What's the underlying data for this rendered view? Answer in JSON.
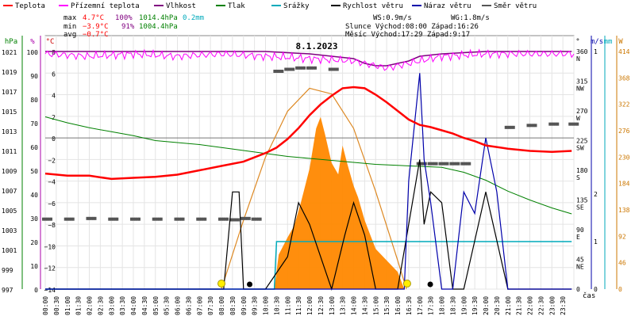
{
  "chart_data": {
    "type": "line",
    "title": "8.1.2023",
    "legend": [
      {
        "label": "Teplota",
        "color": "#ff0000"
      },
      {
        "label": "Přízemní teplota",
        "color": "#ff00ff"
      },
      {
        "label": "Vlhkost",
        "color": "#800080"
      },
      {
        "label": "Tlak",
        "color": "#008000"
      },
      {
        "label": "Srážky",
        "color": "#00aabb"
      },
      {
        "label": "Rychlost větru",
        "color": "#000000"
      },
      {
        "label": "Náraz větru",
        "color": "#0000aa"
      },
      {
        "label": "Směr větru",
        "color": "#555555"
      }
    ],
    "stats": {
      "max_label": "max",
      "max_temp": "4.7°C",
      "max_hum": "100%",
      "max_press": "1014.4hPa",
      "max_rain": "0.2mm",
      "min_label": "min",
      "min_temp": "−3.9°C",
      "min_hum": "91%",
      "min_press": "1004.4hPa",
      "avg_label": "avg",
      "avg_temp": "−0.7°C",
      "ws": "WS:0.9m/s",
      "wg": "WG:1.8m/s",
      "sun": "Slunce Východ:08:00  Západ:16:26",
      "moon": "Měsíc  Východ:17:29  Západ:9:17"
    },
    "axis_units": {
      "hpa": "hPa",
      "percent": "%",
      "celsius": "°C",
      "deg": "°",
      "ms": "m/s",
      "mm": "mm",
      "wm2": "W",
      "time": "čas"
    },
    "hpa_ticks": [
      "1021",
      "1019",
      "1017",
      "1015",
      "1013",
      "1011",
      "1009",
      "1007",
      "1005",
      "1003",
      "1001",
      "999",
      "997"
    ],
    "pct_ticks": [
      "100",
      "90",
      "80",
      "70",
      "60",
      "50",
      "40",
      "30",
      "20",
      "10",
      "0"
    ],
    "temp_ticks": [
      "8",
      "6",
      "4",
      "2",
      "0",
      "−2",
      "−4",
      "−6",
      "−8",
      "−10",
      "−12",
      "−14"
    ],
    "dir_ticks": [
      "360\nN",
      "315\nNW",
      "270\nW",
      "225\nSW",
      "180\nS",
      "135\nSE",
      "90\nE",
      "45\nNE",
      "0"
    ],
    "ms_ticks": [
      "1",
      "2",
      "1",
      "0"
    ],
    "rad_ticks": [
      "414",
      "368",
      "322",
      "276",
      "230",
      "184",
      "138",
      "92",
      "46",
      "0"
    ],
    "time_labels": [
      "00:00",
      "00:30",
      "01:00",
      "01:30",
      "02:00",
      "02:30",
      "03:00",
      "03:30",
      "04:00",
      "04:30",
      "05:00",
      "05:30",
      "06:00",
      "06:30",
      "07:00",
      "07:30",
      "08:00",
      "08:30",
      "09:00",
      "09:30",
      "10:00",
      "10:30",
      "11:00",
      "11:30",
      "12:00",
      "12:30",
      "13:00",
      "13:30",
      "14:00",
      "14:30",
      "15:00",
      "15:30",
      "16:00",
      "16:30",
      "17:00",
      "17:30",
      "18:00",
      "18:30",
      "19:00",
      "19:30",
      "20:00",
      "20:30",
      "21:00",
      "21:30",
      "22:00",
      "22:30",
      "23:00",
      "23:30"
    ],
    "series": {
      "temperature": {
        "x": [
          0,
          1,
          2,
          3,
          4,
          5,
          6,
          7,
          8,
          9,
          10,
          10.5,
          11,
          11.5,
          12,
          12.5,
          13,
          13.5,
          14,
          14.5,
          15,
          15.5,
          16,
          16.5,
          17,
          17.5,
          18,
          18.5,
          19,
          19.5,
          20,
          21,
          22,
          23,
          23.9
        ],
        "y": [
          -3.3,
          -3.5,
          -3.5,
          -3.8,
          -3.7,
          -3.6,
          -3.4,
          -3.0,
          -2.6,
          -2.2,
          -1.4,
          -0.9,
          -0.1,
          0.9,
          2.1,
          3.1,
          3.9,
          4.6,
          4.7,
          4.6,
          4.0,
          3.3,
          2.5,
          1.7,
          1.2,
          1.0,
          0.7,
          0.4,
          0.0,
          -0.3,
          -0.7,
          -1.0,
          -1.2,
          -1.3,
          -1.2
        ]
      },
      "pressure": {
        "x": [
          0,
          1,
          2,
          3,
          4,
          5,
          6,
          7,
          8,
          9,
          10,
          11,
          12,
          13,
          14,
          15,
          16,
          17,
          18,
          19,
          20,
          21,
          22,
          23,
          23.9
        ],
        "y": [
          1014.4,
          1013.8,
          1013.3,
          1012.9,
          1012.5,
          1012.0,
          1011.8,
          1011.6,
          1011.3,
          1011.0,
          1010.7,
          1010.4,
          1010.2,
          1010.0,
          1009.8,
          1009.6,
          1009.5,
          1009.4,
          1009.3,
          1008.8,
          1008.0,
          1006.9,
          1006.0,
          1005.2,
          1004.6
        ]
      },
      "ground_temp_humidity": {
        "x": [
          0,
          2,
          4,
          6,
          8,
          10,
          12,
          14,
          15,
          15.5,
          16,
          16.5,
          17,
          18,
          20,
          22,
          23.9
        ],
        "y": [
          100,
          99,
          100,
          99,
          100,
          99,
          98,
          97,
          95,
          94,
          95,
          96,
          97,
          99,
          100,
          100,
          100
        ]
      },
      "humidity": {
        "x": [
          0,
          2,
          4,
          6,
          8,
          10,
          12,
          14,
          14.5,
          15,
          15.5,
          16,
          16.5,
          17,
          18,
          20,
          22,
          23.9
        ],
        "y": [
          100,
          100,
          100,
          100,
          100,
          100,
          99,
          97,
          95,
          94,
          94,
          95,
          96,
          98,
          99,
          100,
          100,
          100
        ]
      },
      "wind_dir": {
        "x": [
          0,
          1,
          2,
          3,
          4,
          5,
          6,
          7,
          8,
          8.5,
          9,
          9.5,
          10,
          10.5,
          11,
          11.5,
          12,
          13,
          14,
          15,
          16,
          16.5,
          17,
          17.5,
          18,
          18.5,
          19,
          20,
          21,
          22,
          23,
          23.9
        ],
        "y": [
          106,
          106,
          107,
          106,
          106,
          106,
          106,
          106,
          106,
          105,
          107,
          106,
          null,
          330,
          333,
          335,
          335,
          333,
          null,
          null,
          null,
          null,
          190,
          190,
          190,
          190,
          190,
          null,
          245,
          248,
          250,
          250
        ]
      },
      "solar_radiation": {
        "x": [
          10.4,
          10.6,
          11,
          11.3,
          11.6,
          12,
          12.3,
          12.5,
          12.7,
          13,
          13.3,
          13.5,
          13.7,
          14,
          14.2,
          14.5,
          14.8,
          15,
          15.5,
          16,
          16.3
        ],
        "y": [
          0,
          60,
          90,
          110,
          150,
          210,
          280,
          300,
          270,
          220,
          200,
          250,
          220,
          180,
          160,
          120,
          90,
          70,
          50,
          30,
          0
        ]
      },
      "solar_theory": {
        "x": [
          8,
          9,
          10,
          11,
          12,
          13,
          14,
          15,
          16,
          16.4
        ],
        "y": [
          0,
          120,
          230,
          310,
          350,
          340,
          280,
          170,
          50,
          0
        ]
      },
      "rain_total": {
        "x": [
          0,
          10.4,
          10.5,
          23.9
        ],
        "y": [
          0,
          0,
          0.2,
          0.2
        ]
      },
      "wind_speed": {
        "x": [
          0,
          8.1,
          8.5,
          8.8,
          9,
          10,
          11,
          11.5,
          12,
          13,
          13.6,
          14,
          14.5,
          15,
          16,
          17,
          17.2,
          17.5,
          18,
          18.5,
          19,
          20,
          21,
          23.9
        ],
        "y": [
          0,
          0,
          0.9,
          0.9,
          0,
          0,
          0.3,
          0.8,
          0.6,
          0,
          0.5,
          0.8,
          0.5,
          0,
          0,
          1.2,
          0.6,
          0.9,
          0.8,
          0,
          0,
          0.9,
          0,
          0
        ]
      },
      "wind_gust": {
        "x": [
          0,
          16.3,
          16.5,
          17,
          17.2,
          17.5,
          18,
          18.5,
          19,
          19.5,
          20,
          20.5,
          21,
          23.9
        ],
        "y": [
          0,
          0,
          1.0,
          2.0,
          1.2,
          0.8,
          0,
          0,
          0.9,
          0.7,
          1.4,
          0.9,
          0,
          0
        ]
      }
    }
  }
}
